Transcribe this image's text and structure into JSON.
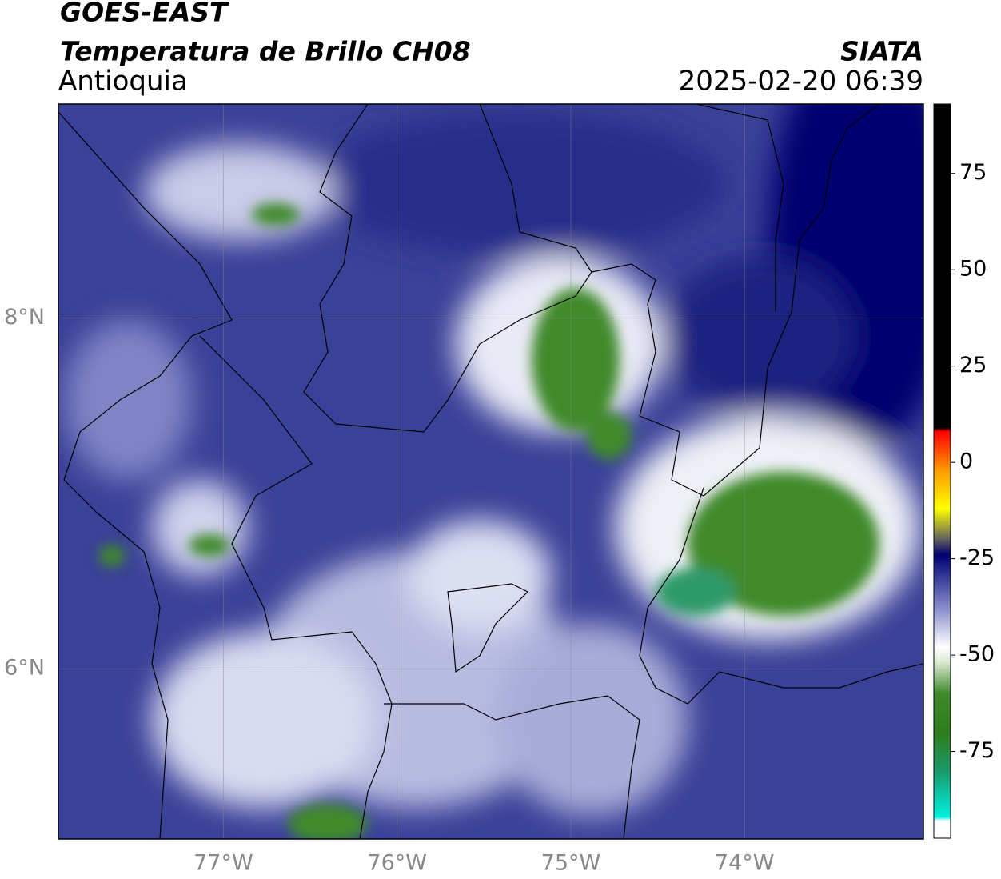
{
  "chart_data": {
    "type": "map",
    "title": "GOES-EAST",
    "subtitle": "Temperatura de Brillo CH08",
    "region": "Antioquia",
    "source": "SIATA",
    "timestamp": "2025-02-20 06:39",
    "xlim": [
      -77.95,
      -72.97
    ],
    "ylim": [
      5.03,
      9.22
    ],
    "xticks": [
      {
        "value": -77,
        "label": "77°W"
      },
      {
        "value": -76,
        "label": "76°W"
      },
      {
        "value": -75,
        "label": "75°W"
      },
      {
        "value": -74,
        "label": "74°W"
      }
    ],
    "yticks": [
      {
        "value": 6,
        "label": "6°N"
      },
      {
        "value": 8,
        "label": "8°N"
      }
    ],
    "grid": true,
    "colorbar": {
      "lim": [
        -97.5,
        93
      ],
      "ticks": [
        -75,
        -50,
        -25,
        0,
        25,
        50,
        75
      ],
      "colormap": [
        {
          "value": -97.5,
          "color": "#ffffff"
        },
        {
          "value": -93,
          "color": "#ffffff"
        },
        {
          "value": -92,
          "color": "#00f0e0"
        },
        {
          "value": -80,
          "color": "#1a9a6a"
        },
        {
          "value": -70,
          "color": "#2e7d1c"
        },
        {
          "value": -60,
          "color": "#3f8a2a"
        },
        {
          "value": -52,
          "color": "#d8e8d0"
        },
        {
          "value": -48,
          "color": "#ffffff"
        },
        {
          "value": -38,
          "color": "#8a8fcc"
        },
        {
          "value": -28,
          "color": "#242a8c"
        },
        {
          "value": -24,
          "color": "#000070"
        },
        {
          "value": -20,
          "color": "#606060"
        },
        {
          "value": -12,
          "color": "#ffff00"
        },
        {
          "value": -2,
          "color": "#ff9900"
        },
        {
          "value": 8,
          "color": "#ff0000"
        },
        {
          "value": 9,
          "color": "#000000"
        },
        {
          "value": 93,
          "color": "#000000"
        }
      ]
    }
  }
}
